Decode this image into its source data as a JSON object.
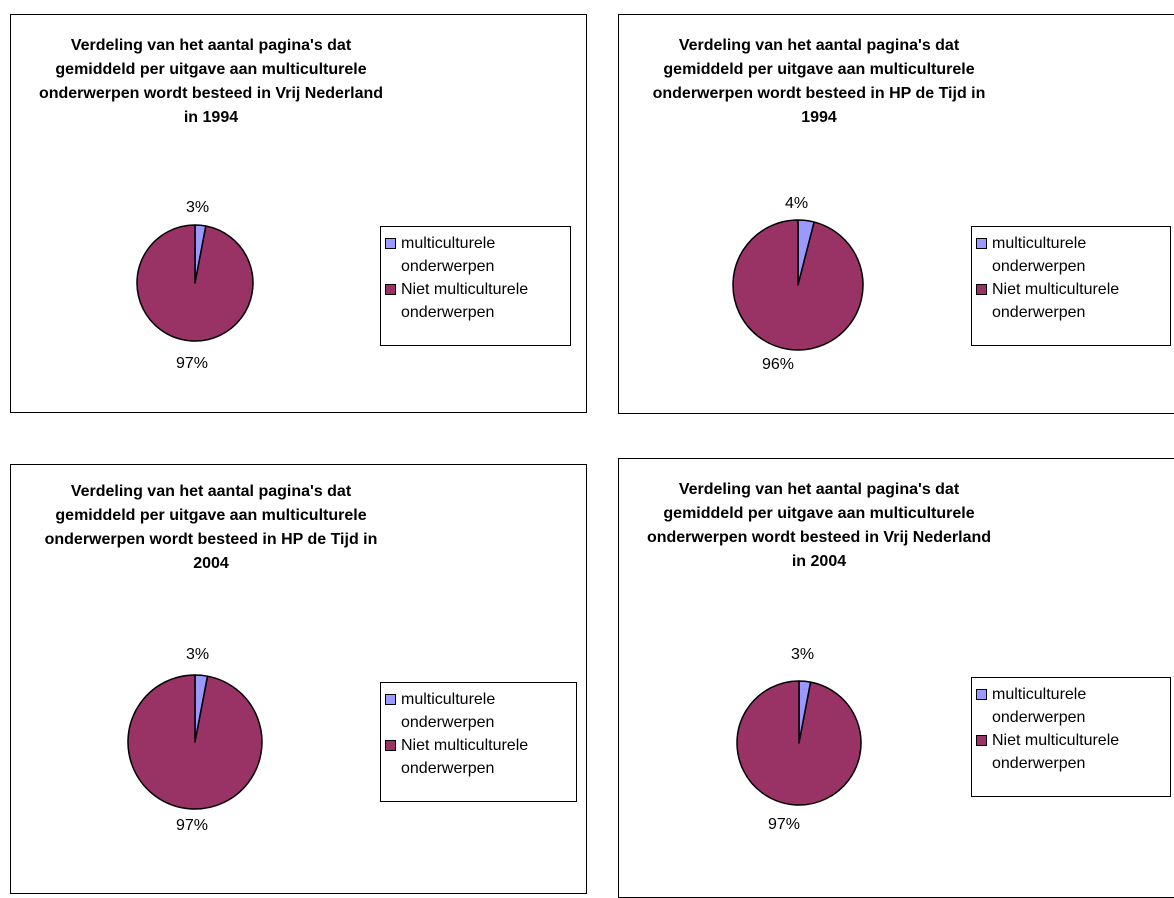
{
  "colors": {
    "multicultural": "#9999ff",
    "other": "#993366",
    "outline": "#000000"
  },
  "chart_data": [
    {
      "type": "pie",
      "title": "Verdeling van het aantal pagina's dat gemiddeld per uitgave aan multiculturele onderwerpen wordt besteed in Vrij Nederland in 1994",
      "title_lines": [
        "Verdeling van het aantal pagina's dat",
        "gemiddeld per uitgave aan multiculturele",
        "onderwerpen wordt besteed in Vrij Nederland",
        "in 1994"
      ],
      "categories": [
        "multiculturele onderwerpen",
        "Niet multiculturele onderwerpen"
      ],
      "values": [
        3,
        97
      ],
      "labels": [
        "3%",
        "97%"
      ],
      "legend": [
        "multiculturele onderwerpen",
        "Niet multiculturele onderwerpen"
      ],
      "legend_position": "right"
    },
    {
      "type": "pie",
      "title": "Verdeling van het aantal pagina's dat gemiddeld per uitgave aan multiculturele onderwerpen wordt besteed in HP de Tijd in 1994",
      "title_lines": [
        "Verdeling van het aantal pagina's dat",
        "gemiddeld per uitgave aan multiculturele",
        "onderwerpen wordt besteed in HP de Tijd in",
        "1994"
      ],
      "categories": [
        "multiculturele onderwerpen",
        "Niet multiculturele onderwerpen"
      ],
      "values": [
        4,
        96
      ],
      "labels": [
        "4%",
        "96%"
      ],
      "legend": [
        "multiculturele onderwerpen",
        "Niet multiculturele onderwerpen"
      ],
      "legend_position": "right"
    },
    {
      "type": "pie",
      "title": "Verdeling van het aantal pagina's dat gemiddeld per uitgave aan multiculturele onderwerpen wordt besteed in HP de Tijd in 2004",
      "title_lines": [
        "Verdeling van het aantal pagina's dat",
        "gemiddeld per uitgave aan multiculturele",
        "onderwerpen wordt besteed in HP de Tijd in",
        "2004"
      ],
      "categories": [
        "multiculturele onderwerpen",
        "Niet multiculturele onderwerpen"
      ],
      "values": [
        3,
        97
      ],
      "labels": [
        "3%",
        "97%"
      ],
      "legend": [
        "multiculturele onderwerpen",
        "Niet multiculturele onderwerpen"
      ],
      "legend_position": "right"
    },
    {
      "type": "pie",
      "title": "Verdeling van het aantal pagina's dat gemiddeld per uitgave aan multiculturele onderwerpen wordt besteed in Vrij Nederland in 2004",
      "title_lines": [
        "Verdeling van het aantal pagina's dat",
        "gemiddeld per uitgave aan multiculturele",
        "onderwerpen wordt besteed in Vrij Nederland",
        "in 2004"
      ],
      "categories": [
        "multiculturele onderwerpen",
        "Niet multiculturele onderwerpen"
      ],
      "values": [
        3,
        97
      ],
      "labels": [
        "3%",
        "97%"
      ],
      "legend": [
        "multiculturele onderwerpen",
        "Niet multiculturele onderwerpen"
      ],
      "legend_position": "right"
    }
  ]
}
